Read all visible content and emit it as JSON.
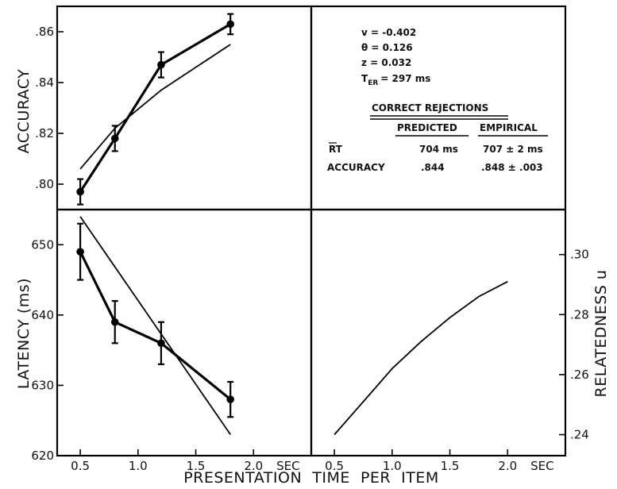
{
  "figure": {
    "xlabel": "PRESENTATION  TIME  PER  ITEM",
    "x_ticks": [
      "0.5",
      "1.0",
      "1.5",
      "2.0"
    ],
    "x_unit": "SEC"
  },
  "chart_data": [
    {
      "type": "line",
      "panel": "top-left",
      "ylabel": "ACCURACY",
      "ylim": [
        0.79,
        0.87
      ],
      "xlim": [
        0.3,
        2.5
      ],
      "y_ticks": [
        ".80",
        ".82",
        ".84",
        ".86"
      ],
      "y_tick_values": [
        0.8,
        0.82,
        0.84,
        0.86
      ],
      "series": [
        {
          "role": "empirical",
          "x": [
            0.5,
            0.8,
            1.2,
            1.8
          ],
          "y": [
            0.797,
            0.818,
            0.847,
            0.863
          ],
          "err": [
            0.005,
            0.005,
            0.005,
            0.004
          ]
        },
        {
          "role": "predicted",
          "x": [
            0.5,
            0.8,
            1.2,
            1.8
          ],
          "y": [
            0.806,
            0.822,
            0.837,
            0.855
          ]
        }
      ]
    },
    {
      "type": "line",
      "panel": "bottom-left",
      "ylabel": "LATENCY (ms)",
      "ylim": [
        620,
        655
      ],
      "xlim": [
        0.3,
        2.5
      ],
      "y_ticks": [
        "620",
        "630",
        "640",
        "650"
      ],
      "y_tick_values": [
        620,
        630,
        640,
        650
      ],
      "series": [
        {
          "role": "empirical",
          "x": [
            0.5,
            0.8,
            1.2,
            1.8
          ],
          "y": [
            649,
            639,
            636,
            628
          ],
          "err": [
            4,
            3,
            3,
            2.5
          ]
        },
        {
          "role": "predicted",
          "x": [
            0.5,
            1.8
          ],
          "y": [
            654,
            623
          ]
        }
      ]
    },
    {
      "type": "line",
      "panel": "bottom-right",
      "ylabel": "RELATEDNESS u",
      "ylim": [
        0.233,
        0.315
      ],
      "xlim": [
        0.3,
        2.5
      ],
      "y_ticks": [
        ".24",
        ".26",
        ".28",
        ".30"
      ],
      "y_tick_values": [
        0.24,
        0.26,
        0.28,
        0.3
      ],
      "series": [
        {
          "role": "predicted",
          "x": [
            0.5,
            0.75,
            1.0,
            1.25,
            1.5,
            1.75,
            2.0
          ],
          "y": [
            0.24,
            0.251,
            0.262,
            0.271,
            0.279,
            0.286,
            0.291
          ]
        }
      ]
    }
  ],
  "params": {
    "v": "v = -0.402",
    "theta": "θ = 0.126",
    "z": "z = 0.032",
    "t_er_sym": "T",
    "t_er_sub": "ER",
    "t_er_val": "= 297 ms"
  },
  "results_table": {
    "title": "CORRECT REJECTIONS",
    "col_predicted": "PREDICTED",
    "col_empirical": "EMPIRICAL",
    "rows": [
      {
        "label": "RT",
        "predicted": "704 ms",
        "empirical": "707 ± 2 ms"
      },
      {
        "label": "ACCURACY",
        "predicted": ".844",
        "empirical": ".848 ± .003"
      }
    ]
  }
}
